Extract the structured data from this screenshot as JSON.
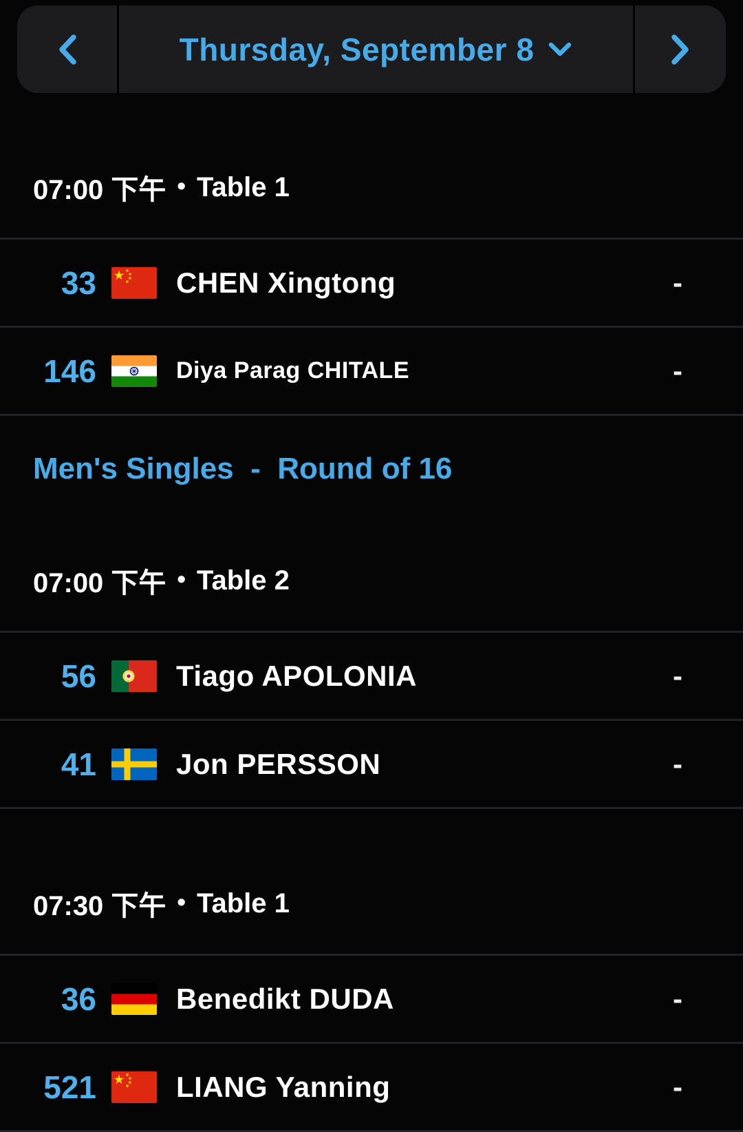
{
  "colors": {
    "background": "#050505",
    "bar_bg": "#1c1c1e",
    "divider": "#232327",
    "accent": "#47abe9",
    "rank_blue": "#4fb0ec",
    "text": "#ffffff",
    "score": "#ededed"
  },
  "ui": {
    "separator": "•"
  },
  "date_bar": {
    "prev_icon": "chevron-left-icon",
    "next_icon": "chevron-right-icon",
    "dropdown_icon": "chevron-down-icon",
    "label": "Thursday, September 8"
  },
  "blocks": [
    {
      "type": "session",
      "time": "07:00 下午",
      "table": "Table 1",
      "matches": [
        {
          "rank": "33",
          "flag": "china-flag-icon",
          "name": "CHEN Xingtong",
          "name_size": "large",
          "score": "-"
        },
        {
          "rank": "146",
          "flag": "india-flag-icon",
          "name": "Diya Parag CHITALE",
          "name_size": "small",
          "score": "-"
        }
      ]
    },
    {
      "type": "event",
      "label": "Men's Singles  -  Round of 16"
    },
    {
      "type": "session",
      "time": "07:00 下午",
      "table": "Table 2",
      "matches": [
        {
          "rank": "56",
          "flag": "portugal-flag-icon",
          "name": "Tiago APOLONIA",
          "name_size": "large",
          "score": "-"
        },
        {
          "rank": "41",
          "flag": "sweden-flag-icon",
          "name": "Jon PERSSON",
          "name_size": "large",
          "score": "-"
        }
      ]
    },
    {
      "type": "session",
      "time": "07:30 下午",
      "table": "Table 1",
      "matches": [
        {
          "rank": "36",
          "flag": "germany-flag-icon",
          "name": "Benedikt DUDA",
          "name_size": "large",
          "score": "-"
        },
        {
          "rank": "521",
          "flag": "china-flag-icon",
          "name": "LIANG Yanning",
          "name_size": "large",
          "score": "-"
        }
      ]
    }
  ]
}
